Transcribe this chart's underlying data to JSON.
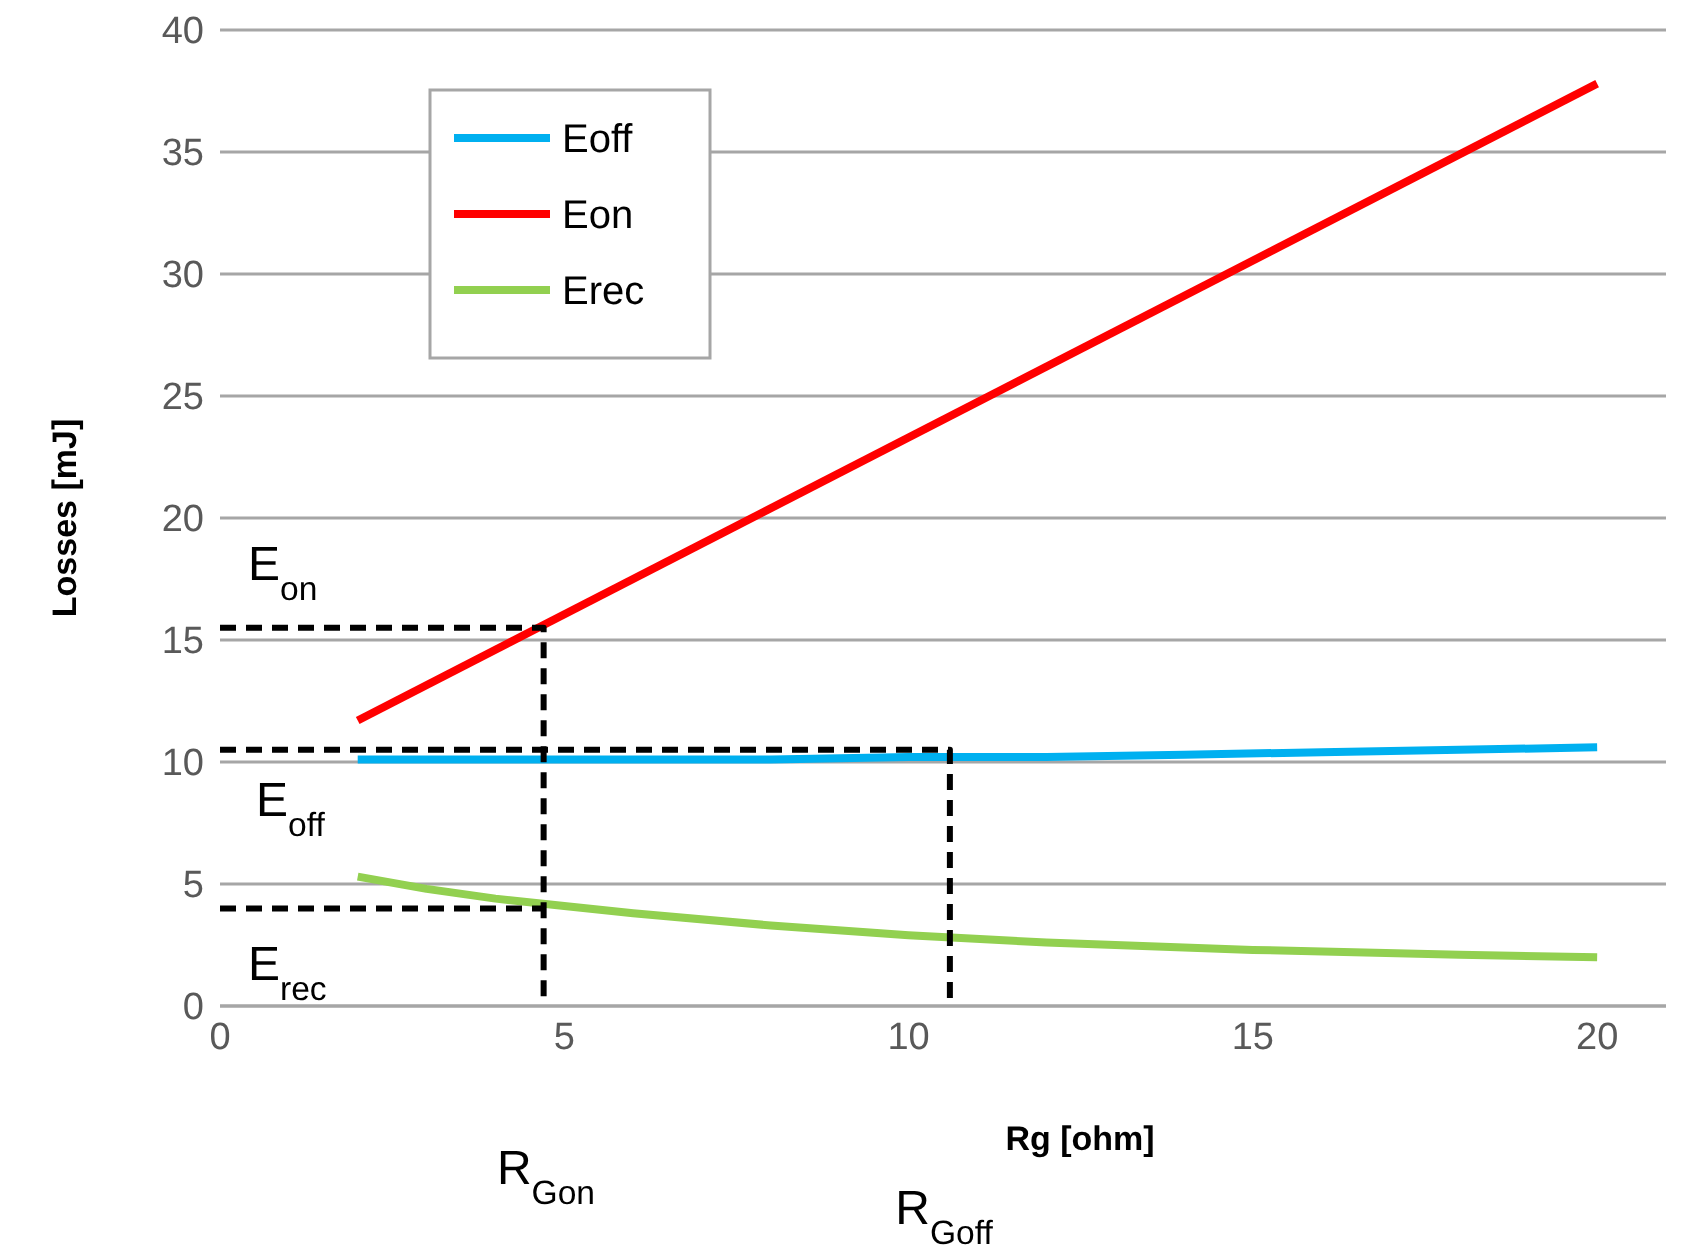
{
  "chart_data": {
    "type": "line",
    "xlabel": "Rg [ohm]",
    "ylabel": "Losses [mJ]",
    "xlim": [
      0,
      21
    ],
    "xticks": [
      0,
      5,
      10,
      15,
      20
    ],
    "ylim": [
      0,
      40
    ],
    "yticks": [
      0,
      5,
      10,
      15,
      20,
      25,
      30,
      35,
      40
    ],
    "grid": "y",
    "legend": "top left",
    "marker": "none",
    "line_style": "solid",
    "series": [
      {
        "name": "Eoff",
        "color": "#00b0f0",
        "x": [
          2,
          4,
          6,
          8,
          10,
          12,
          14,
          16,
          18,
          20
        ],
        "values": [
          10.1,
          10.1,
          10.1,
          10.1,
          10.2,
          10.2,
          10.3,
          10.4,
          10.5,
          10.6
        ]
      },
      {
        "name": "Eon",
        "color": "#ff0000",
        "x": [
          2,
          20
        ],
        "values": [
          11.7,
          37.8
        ]
      },
      {
        "name": "Erec",
        "color": "#92d050",
        "x": [
          2,
          3,
          4,
          5,
          6,
          8,
          10,
          12,
          15,
          18,
          20
        ],
        "values": [
          5.3,
          4.8,
          4.4,
          4.1,
          3.8,
          3.3,
          2.9,
          2.6,
          2.3,
          2.1,
          2.0
        ]
      },
      {
        "color": "#000000",
        "line_style": "dashed",
        "x": [
          0,
          4.7,
          4.7
        ],
        "values": [
          15.5,
          15.5,
          0
        ]
      },
      {
        "color": "#000000",
        "line_style": "dashed",
        "x": [
          0,
          10.6,
          10.6
        ],
        "values": [
          10.5,
          10.5,
          0
        ]
      },
      {
        "color": "#000000",
        "line_style": "dashed",
        "x": [
          0,
          4.7
        ],
        "values": [
          4,
          4
        ]
      }
    ],
    "annotations": [
      "E$_{on}$",
      "E$_{off}$",
      "E$_{rec}$",
      "R$_{Gon}$",
      "R$_{Goff}$"
    ]
  }
}
